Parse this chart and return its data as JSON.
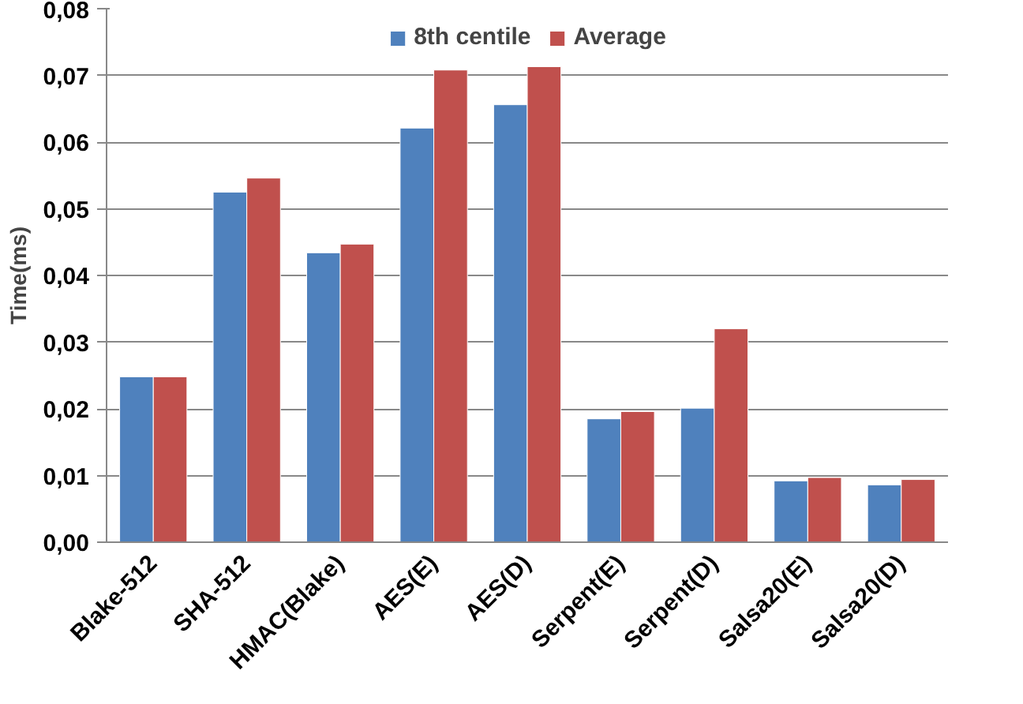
{
  "chart_data": {
    "type": "bar",
    "ylabel": "Time(ms)",
    "categories": [
      "Blake-512",
      "SHA-512",
      "HMAC(Blake)",
      "AES(E)",
      "AES(D)",
      "Serpent(E)",
      "Serpent(D)",
      "Salsa20(E)",
      "Salsa20(D)"
    ],
    "series": [
      {
        "name": "8th centile",
        "color": "#4f81bd",
        "values": [
          0.0248,
          0.0525,
          0.0434,
          0.0621,
          0.0656,
          0.0185,
          0.0201,
          0.0092,
          0.0086
        ]
      },
      {
        "name": "Average",
        "color": "#c0504d",
        "values": [
          0.0248,
          0.0546,
          0.0447,
          0.0708,
          0.0713,
          0.0196,
          0.032,
          0.0097,
          0.0094
        ]
      }
    ],
    "ylim": [
      0,
      0.08
    ],
    "yticks": [
      {
        "value": 0,
        "label": "0,00"
      },
      {
        "value": 0.01,
        "label": "0,01"
      },
      {
        "value": 0.02,
        "label": "0,02"
      },
      {
        "value": 0.03,
        "label": "0,03"
      },
      {
        "value": 0.04,
        "label": "0,04"
      },
      {
        "value": 0.05,
        "label": "0,05"
      },
      {
        "value": 0.06,
        "label": "0,06"
      },
      {
        "value": 0.07,
        "label": "0,07"
      },
      {
        "value": 0.08,
        "label": "0,08"
      }
    ],
    "grid": "y",
    "legend": "top"
  }
}
